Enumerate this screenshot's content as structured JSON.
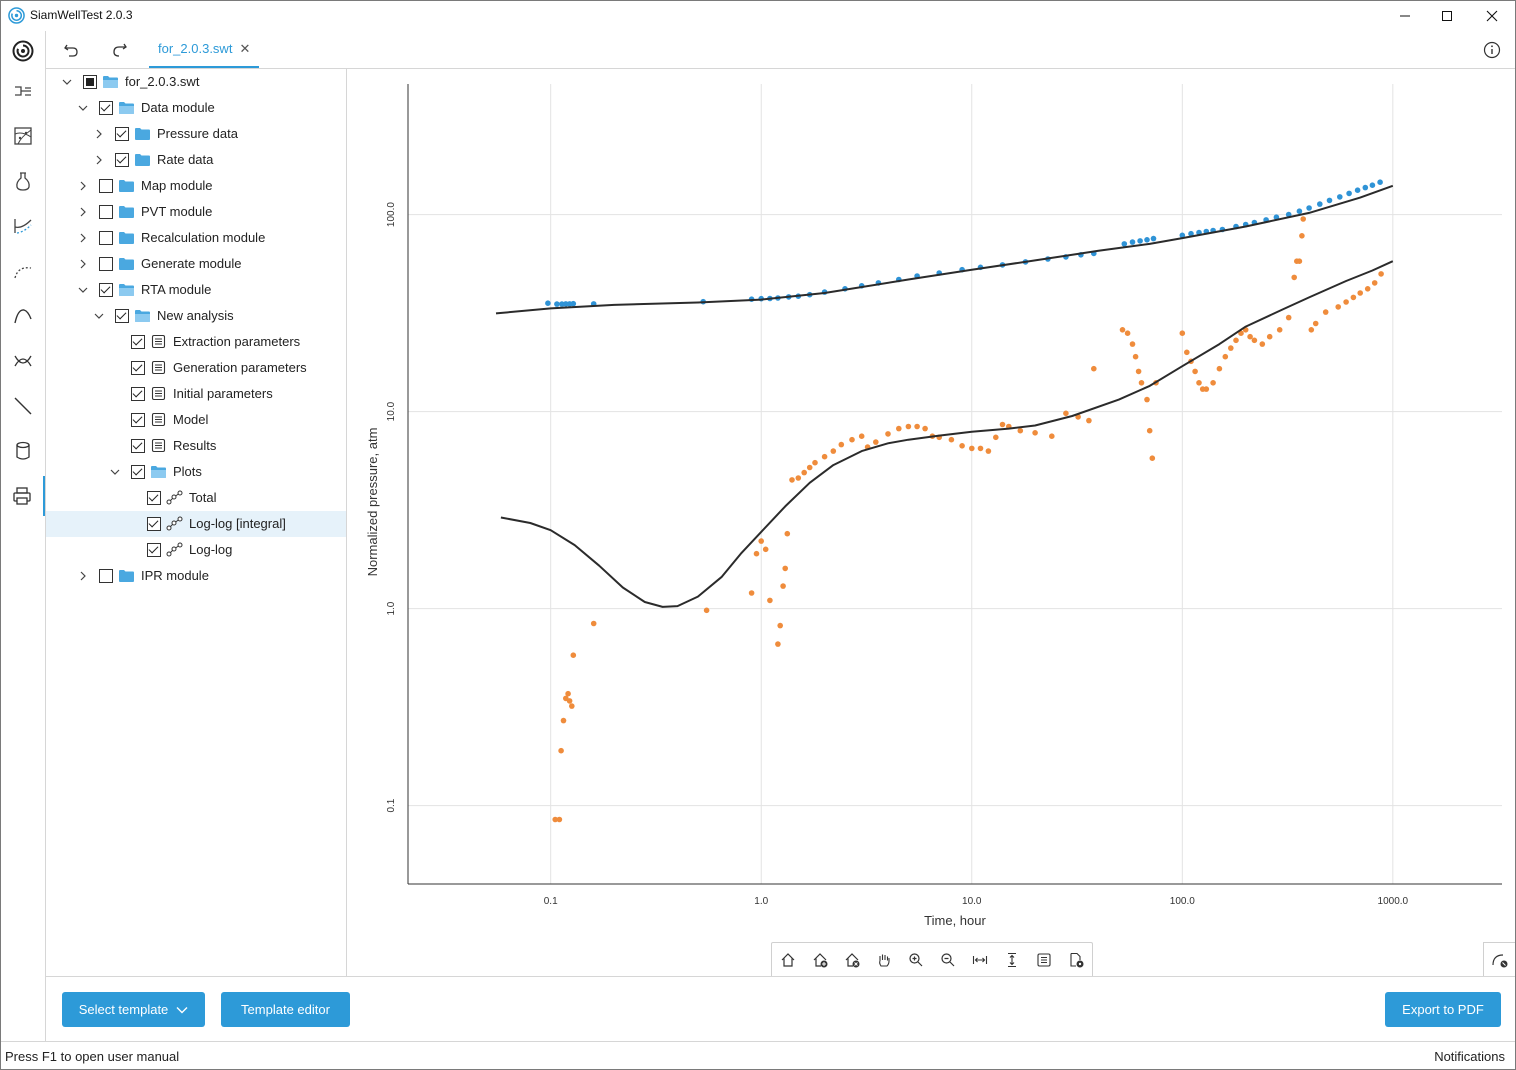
{
  "window": {
    "title": "SiamWellTest 2.0.3"
  },
  "toolbar": {
    "file_tab": "for_2.0.3.swt",
    "close_glyph": "✕"
  },
  "tree": {
    "items": [
      {
        "label": "for_2.0.3.swt",
        "level": 0,
        "expanded": true,
        "check": "partial",
        "icon": "folder-open-icon"
      },
      {
        "label": "Data module",
        "level": 1,
        "expanded": true,
        "check": "checked",
        "icon": "folder-open-icon"
      },
      {
        "label": "Pressure data",
        "level": 2,
        "expanded": false,
        "check": "checked",
        "icon": "folder-icon"
      },
      {
        "label": "Rate data",
        "level": 2,
        "expanded": false,
        "check": "checked",
        "icon": "folder-icon"
      },
      {
        "label": "Map module",
        "level": 1,
        "expanded": false,
        "check": "unchecked",
        "icon": "folder-icon"
      },
      {
        "label": "PVT module",
        "level": 1,
        "expanded": false,
        "check": "unchecked",
        "icon": "folder-icon"
      },
      {
        "label": "Recalculation module",
        "level": 1,
        "expanded": false,
        "check": "unchecked",
        "icon": "folder-icon"
      },
      {
        "label": "Generate module",
        "level": 1,
        "expanded": false,
        "check": "unchecked",
        "icon": "folder-icon"
      },
      {
        "label": "RTA module",
        "level": 1,
        "expanded": true,
        "check": "checked",
        "icon": "folder-open-icon"
      },
      {
        "label": "New analysis",
        "level": 2,
        "expanded": true,
        "check": "checked",
        "icon": "folder-open-icon"
      },
      {
        "label": "Extraction parameters",
        "level": 3,
        "check": "checked",
        "icon": "document-icon"
      },
      {
        "label": "Generation parameters",
        "level": 3,
        "check": "checked",
        "icon": "document-icon"
      },
      {
        "label": "Initial parameters",
        "level": 3,
        "check": "checked",
        "icon": "document-icon"
      },
      {
        "label": "Model",
        "level": 3,
        "check": "checked",
        "icon": "document-icon"
      },
      {
        "label": "Results",
        "level": 3,
        "check": "checked",
        "icon": "document-icon"
      },
      {
        "label": "Plots",
        "level": 3,
        "expanded": true,
        "check": "checked",
        "icon": "folder-open-icon"
      },
      {
        "label": "Total",
        "level": 4,
        "check": "checked",
        "icon": "plot-icon"
      },
      {
        "label": "Log-log [integral]",
        "level": 4,
        "check": "checked",
        "icon": "plot-icon",
        "selected": true
      },
      {
        "label": "Log-log",
        "level": 4,
        "check": "checked",
        "icon": "plot-icon"
      },
      {
        "label": "IPR module",
        "level": 1,
        "expanded": false,
        "check": "unchecked",
        "icon": "folder-icon"
      }
    ]
  },
  "chart_data": {
    "type": "scatter",
    "xlabel": "Time, hour",
    "ylabel": "Normalized pressure, atm",
    "x_scale": "log",
    "y_scale": "log",
    "xlim": [
      0.021,
      3300
    ],
    "ylim": [
      0.04,
      460
    ],
    "x_ticks": [
      0.1,
      1.0,
      10.0,
      100.0,
      1000.0
    ],
    "x_tick_labels": [
      "0.1",
      "1.0",
      "10.0",
      "100.0",
      "1000.0"
    ],
    "y_ticks": [
      0.1,
      1.0,
      10.0,
      100.0
    ],
    "y_tick_labels": [
      "0.1",
      "1.0",
      "10.0",
      "100.0"
    ],
    "grid": true,
    "colors": {
      "pressure": "#2f93d6",
      "derivative": "#ef8c3c",
      "model": "#2b2b2b"
    },
    "series": [
      {
        "kind": "points",
        "color": "#2f93d6",
        "points": [
          [
            0.097,
            35.5
          ],
          [
            0.107,
            35.1
          ],
          [
            0.113,
            35.1
          ],
          [
            0.118,
            35.2
          ],
          [
            0.123,
            35.2
          ],
          [
            0.128,
            35.3
          ],
          [
            0.16,
            35.2
          ],
          [
            0.53,
            36.1
          ],
          [
            0.9,
            37.2
          ],
          [
            1.0,
            37.4
          ],
          [
            1.1,
            37.5
          ],
          [
            1.2,
            37.7
          ],
          [
            1.35,
            38.2
          ],
          [
            1.5,
            38.5
          ],
          [
            1.7,
            39.2
          ],
          [
            2.0,
            40.4
          ],
          [
            2.5,
            42.0
          ],
          [
            3.0,
            43.5
          ],
          [
            3.6,
            45.0
          ],
          [
            4.5,
            46.8
          ],
          [
            5.5,
            48.8
          ],
          [
            7.0,
            50.5
          ],
          [
            9.0,
            52.5
          ],
          [
            11,
            54.0
          ],
          [
            14,
            55.5
          ],
          [
            18,
            57.5
          ],
          [
            23,
            59.5
          ],
          [
            28,
            61.0
          ],
          [
            33,
            62.5
          ],
          [
            38,
            63.5
          ],
          [
            53,
            71
          ],
          [
            58,
            72.5
          ],
          [
            63,
            73.5
          ],
          [
            68,
            74.5
          ],
          [
            73,
            75.5
          ],
          [
            100,
            78.5
          ],
          [
            110,
            80
          ],
          [
            120,
            81
          ],
          [
            130,
            82
          ],
          [
            140,
            83
          ],
          [
            155,
            84
          ],
          [
            180,
            87
          ],
          [
            200,
            89
          ],
          [
            220,
            91
          ],
          [
            250,
            94
          ],
          [
            280,
            97
          ],
          [
            320,
            100
          ],
          [
            360,
            104
          ],
          [
            400,
            108
          ],
          [
            450,
            113
          ],
          [
            500,
            118
          ],
          [
            560,
            123
          ],
          [
            620,
            128
          ],
          [
            680,
            133
          ],
          [
            740,
            137
          ],
          [
            800,
            141
          ],
          [
            870,
            146
          ]
        ]
      },
      {
        "kind": "points",
        "color": "#ef8c3c",
        "points": [
          [
            0.105,
            0.085
          ],
          [
            0.11,
            0.085
          ],
          [
            0.112,
            0.19
          ],
          [
            0.115,
            0.27
          ],
          [
            0.118,
            0.35
          ],
          [
            0.121,
            0.37
          ],
          [
            0.123,
            0.34
          ],
          [
            0.126,
            0.32
          ],
          [
            0.128,
            0.58
          ],
          [
            0.16,
            0.84
          ],
          [
            0.55,
            0.98
          ],
          [
            0.9,
            1.2
          ],
          [
            0.95,
            1.9
          ],
          [
            1.0,
            2.2
          ],
          [
            1.05,
            2.0
          ],
          [
            1.1,
            1.1
          ],
          [
            1.2,
            0.66
          ],
          [
            1.23,
            0.82
          ],
          [
            1.27,
            1.3
          ],
          [
            1.3,
            1.6
          ],
          [
            1.33,
            2.4
          ],
          [
            1.4,
            4.5
          ],
          [
            1.5,
            4.6
          ],
          [
            1.6,
            4.9
          ],
          [
            1.7,
            5.2
          ],
          [
            1.8,
            5.5
          ],
          [
            2.0,
            5.9
          ],
          [
            2.2,
            6.3
          ],
          [
            2.4,
            6.8
          ],
          [
            2.7,
            7.2
          ],
          [
            3.0,
            7.5
          ],
          [
            3.2,
            6.6
          ],
          [
            3.5,
            7.0
          ],
          [
            4.0,
            7.7
          ],
          [
            4.5,
            8.2
          ],
          [
            5.0,
            8.4
          ],
          [
            5.5,
            8.4
          ],
          [
            6.0,
            8.2
          ],
          [
            6.5,
            7.5
          ],
          [
            7.0,
            7.4
          ],
          [
            8.0,
            7.2
          ],
          [
            9.0,
            6.7
          ],
          [
            10,
            6.5
          ],
          [
            11,
            6.5
          ],
          [
            12,
            6.3
          ],
          [
            13,
            7.4
          ],
          [
            14,
            8.6
          ],
          [
            15,
            8.4
          ],
          [
            17,
            8.0
          ],
          [
            20,
            7.8
          ],
          [
            24,
            7.5
          ],
          [
            28,
            9.8
          ],
          [
            32,
            9.4
          ],
          [
            36,
            9.0
          ],
          [
            38,
            16.5
          ],
          [
            52,
            26
          ],
          [
            55,
            25
          ],
          [
            58,
            22
          ],
          [
            60,
            19
          ],
          [
            62,
            16
          ],
          [
            64,
            14
          ],
          [
            68,
            11.5
          ],
          [
            70,
            8.0
          ],
          [
            72,
            5.8
          ],
          [
            75,
            14
          ],
          [
            100,
            25
          ],
          [
            105,
            20
          ],
          [
            110,
            18
          ],
          [
            115,
            16
          ],
          [
            120,
            14
          ],
          [
            125,
            13
          ],
          [
            130,
            13
          ],
          [
            140,
            14
          ],
          [
            150,
            16.5
          ],
          [
            160,
            19
          ],
          [
            170,
            21
          ],
          [
            180,
            23
          ],
          [
            190,
            25
          ],
          [
            200,
            26
          ],
          [
            210,
            24
          ],
          [
            220,
            23
          ],
          [
            240,
            22
          ],
          [
            260,
            24
          ],
          [
            290,
            26
          ],
          [
            320,
            30
          ],
          [
            340,
            48
          ],
          [
            350,
            58
          ],
          [
            360,
            58
          ],
          [
            370,
            78
          ],
          [
            375,
            95
          ],
          [
            410,
            26
          ],
          [
            430,
            28
          ],
          [
            480,
            32
          ],
          [
            550,
            34
          ],
          [
            600,
            36
          ],
          [
            650,
            38
          ],
          [
            700,
            40
          ],
          [
            760,
            42
          ],
          [
            820,
            45
          ],
          [
            880,
            50
          ]
        ]
      },
      {
        "kind": "line",
        "color": "#2b2b2b",
        "points": [
          [
            0.055,
            31.5
          ],
          [
            0.1,
            33.4
          ],
          [
            0.2,
            34.8
          ],
          [
            0.5,
            35.8
          ],
          [
            1.0,
            37.0
          ],
          [
            2.0,
            40.0
          ],
          [
            5.0,
            46.8
          ],
          [
            10,
            52.5
          ],
          [
            20,
            58.5
          ],
          [
            40,
            65.5
          ],
          [
            70,
            71
          ],
          [
            100,
            76
          ],
          [
            200,
            87
          ],
          [
            400,
            102
          ],
          [
            700,
            122
          ],
          [
            1000,
            140
          ]
        ]
      },
      {
        "kind": "line",
        "color": "#2b2b2b",
        "points": [
          [
            0.058,
            2.9
          ],
          [
            0.08,
            2.72
          ],
          [
            0.1,
            2.5
          ],
          [
            0.13,
            2.1
          ],
          [
            0.17,
            1.65
          ],
          [
            0.22,
            1.28
          ],
          [
            0.28,
            1.08
          ],
          [
            0.34,
            1.02
          ],
          [
            0.4,
            1.03
          ],
          [
            0.5,
            1.15
          ],
          [
            0.65,
            1.45
          ],
          [
            0.8,
            1.9
          ],
          [
            1.0,
            2.45
          ],
          [
            1.3,
            3.3
          ],
          [
            1.7,
            4.35
          ],
          [
            2.2,
            5.35
          ],
          [
            3.0,
            6.3
          ],
          [
            4.0,
            6.9
          ],
          [
            5.0,
            7.2
          ],
          [
            7.0,
            7.55
          ],
          [
            10,
            7.9
          ],
          [
            15,
            8.2
          ],
          [
            20,
            8.5
          ],
          [
            30,
            9.5
          ],
          [
            50,
            11.5
          ],
          [
            70,
            13.5
          ],
          [
            100,
            17
          ],
          [
            150,
            22
          ],
          [
            200,
            27
          ],
          [
            300,
            33
          ],
          [
            400,
            38
          ],
          [
            600,
            46
          ],
          [
            800,
            52
          ],
          [
            1000,
            58
          ]
        ]
      }
    ]
  },
  "bottom": {
    "select_template": "Select template",
    "template_editor": "Template editor",
    "export_pdf": "Export to PDF"
  },
  "status": {
    "left": "Press F1 to open user manual",
    "right": "Notifications"
  }
}
